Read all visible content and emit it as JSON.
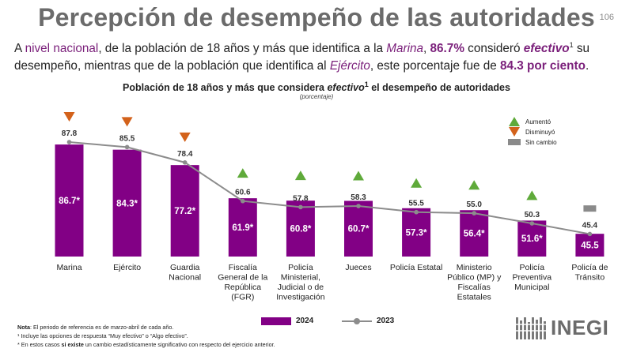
{
  "title": "Percepción de desempeño de las autoridades",
  "page_number": "106",
  "intro": {
    "p1": "A ",
    "h1": "nivel nacional",
    "p2": ", de la población de 18 años y más que identifica a la ",
    "h2": "Marina",
    "p3": ", ",
    "h3": "86.7%",
    "p4": " consideró ",
    "h4": "efectivo",
    "sup": "1",
    "p5": " su desempeño, mientras que de la población que identifica al ",
    "h5": "Ejército",
    "p6": ", este porcentaje fue de ",
    "h6": "84.3 por ciento",
    "p7": "."
  },
  "chart_title": {
    "pre": "Población de 18 años y más que considera ",
    "it": "efectivo",
    "sup": "1",
    "post": " el desempeño de autoridades"
  },
  "chart_subtitle": "(porcentaje)",
  "legend": {
    "series_2024": "2024",
    "series_2023": "2023",
    "increase": "Aumentó",
    "decrease": "Disminuyó",
    "no_change": "Sin cambio"
  },
  "notes": {
    "note_label": "Nota",
    "note_text": ": El periodo de referencia es de marzo-abril de cada año.",
    "fn1": "¹ Incluye las opciones de respuesta “Muy efectivo” o “Algo efectivo”.",
    "fn2_pre": "* En estos casos ",
    "fn2_bold": "si existe",
    "fn2_post": " un cambio estadísticamente significativo con respecto del ejercicio anterior."
  },
  "logo_text": "INEGI",
  "colors": {
    "bar": "#820085",
    "line": "#8c8c8c",
    "up": "#5faa3a",
    "down": "#d3621b",
    "same": "#8a8a8a",
    "accent": "#7a1f7a"
  },
  "chart_data": {
    "type": "bar",
    "categories": [
      [
        "Marina"
      ],
      [
        "Ejército"
      ],
      [
        "Guardia",
        "Nacional"
      ],
      [
        "Fiscalía",
        "General de la",
        "República",
        "(FGR)"
      ],
      [
        "Policía",
        "Ministerial,",
        "Judicial o de",
        "Investigación"
      ],
      [
        "Jueces"
      ],
      [
        "Policía Estatal"
      ],
      [
        "Ministerio",
        "Público (MP) y",
        "Fiscalías",
        "Estatales"
      ],
      [
        "Policía",
        "Preventiva",
        "Municipal"
      ],
      [
        "Policía de",
        "Tránsito"
      ]
    ],
    "series": [
      {
        "name": "2024",
        "type": "bar",
        "values": [
          86.7,
          84.3,
          77.2,
          61.9,
          60.8,
          60.7,
          57.3,
          56.4,
          51.6,
          45.5
        ],
        "labels": [
          "86.7*",
          "84.3*",
          "77.2*",
          "61.9*",
          "60.8*",
          "60.7*",
          "57.3*",
          "56.4*",
          "51.6*",
          "45.5"
        ]
      },
      {
        "name": "2023",
        "type": "line",
        "values": [
          87.8,
          85.5,
          78.4,
          60.6,
          57.8,
          58.3,
          55.5,
          55.0,
          50.3,
          45.4
        ],
        "labels": [
          "87.8",
          "85.5",
          "78.4",
          "60.6",
          "57.8",
          "58.3",
          "55.5",
          "55.0",
          "50.3",
          "45.4"
        ]
      }
    ],
    "change": [
      "down",
      "down",
      "down",
      "up",
      "up",
      "up",
      "up",
      "up",
      "up",
      "same"
    ],
    "ylim": [
      35,
      90
    ],
    "grid": false,
    "legend_position": "bottom",
    "xlabel": "",
    "ylabel": ""
  }
}
